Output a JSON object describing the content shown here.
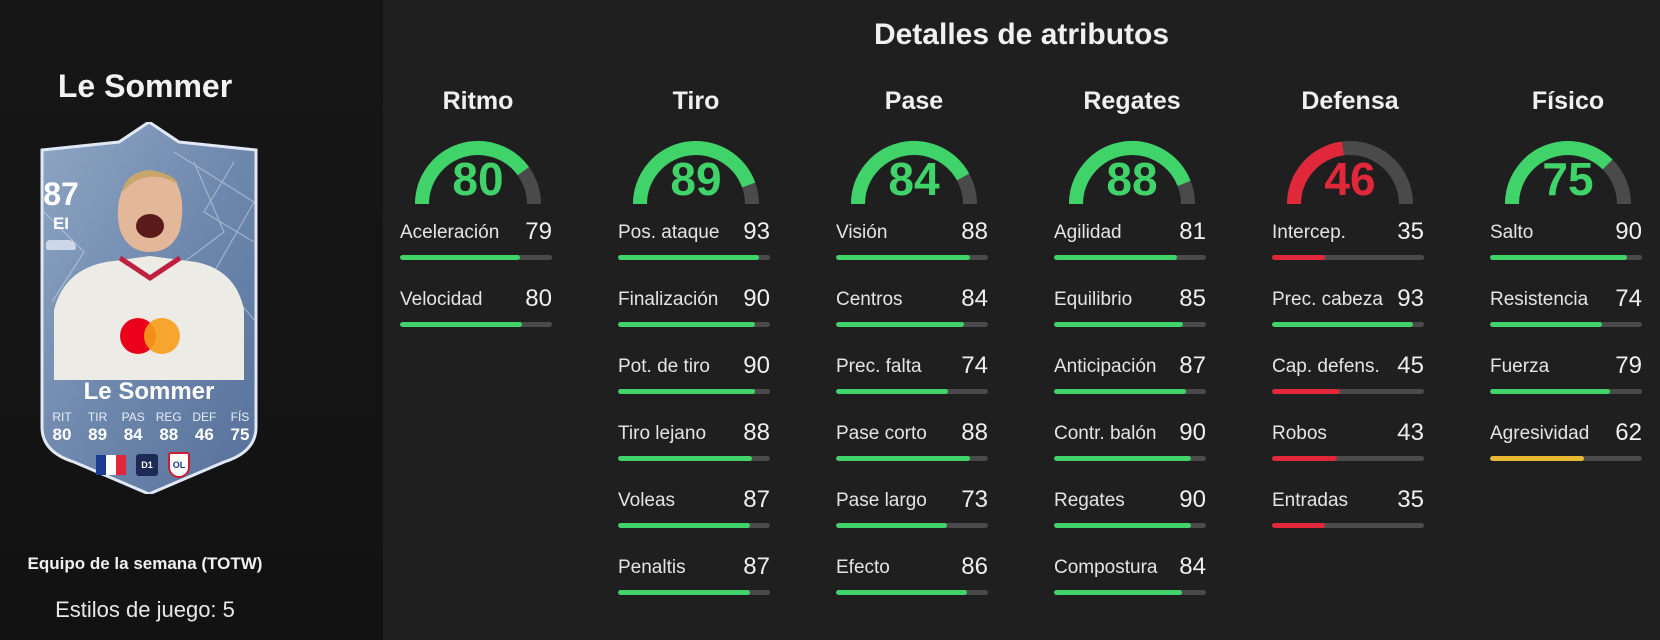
{
  "header": {
    "title": "Detalles de atributos"
  },
  "player": {
    "name": "Le Sommer",
    "card": {
      "rating": "87",
      "position": "EI",
      "name": "Le Sommer",
      "stats": [
        {
          "label": "RIT",
          "value": "80"
        },
        {
          "label": "TIR",
          "value": "89"
        },
        {
          "label": "PAS",
          "value": "84"
        },
        {
          "label": "REG",
          "value": "88"
        },
        {
          "label": "DEF",
          "value": "46"
        },
        {
          "label": "FÍS",
          "value": "75"
        }
      ],
      "league_badge": "D1",
      "club_badge": "OL"
    },
    "team": "Equipo de la semana (TOTW)",
    "playstyles": "Estilos de juego: 5"
  },
  "colors": {
    "green": "#3fd36a",
    "red": "#e0283a",
    "yellow": "#e8b830",
    "track": "#4a4a4a"
  },
  "categories": [
    {
      "name": "Ritmo",
      "value": 80,
      "color": "green",
      "attributes": [
        {
          "name": "Aceleración",
          "value": 79,
          "color": "green"
        },
        {
          "name": "Velocidad",
          "value": 80,
          "color": "green"
        }
      ]
    },
    {
      "name": "Tiro",
      "value": 89,
      "color": "green",
      "attributes": [
        {
          "name": "Pos. ataque",
          "value": 93,
          "color": "green"
        },
        {
          "name": "Finalización",
          "value": 90,
          "color": "green"
        },
        {
          "name": "Pot. de tiro",
          "value": 90,
          "color": "green"
        },
        {
          "name": "Tiro lejano",
          "value": 88,
          "color": "green"
        },
        {
          "name": "Voleas",
          "value": 87,
          "color": "green"
        },
        {
          "name": "Penaltis",
          "value": 87,
          "color": "green"
        }
      ]
    },
    {
      "name": "Pase",
      "value": 84,
      "color": "green",
      "attributes": [
        {
          "name": "Visión",
          "value": 88,
          "color": "green"
        },
        {
          "name": "Centros",
          "value": 84,
          "color": "green"
        },
        {
          "name": "Prec. falta",
          "value": 74,
          "color": "green"
        },
        {
          "name": "Pase corto",
          "value": 88,
          "color": "green"
        },
        {
          "name": "Pase largo",
          "value": 73,
          "color": "green"
        },
        {
          "name": "Efecto",
          "value": 86,
          "color": "green"
        }
      ]
    },
    {
      "name": "Regates",
      "value": 88,
      "color": "green",
      "attributes": [
        {
          "name": "Agilidad",
          "value": 81,
          "color": "green"
        },
        {
          "name": "Equilibrio",
          "value": 85,
          "color": "green"
        },
        {
          "name": "Anticipación",
          "value": 87,
          "color": "green"
        },
        {
          "name": "Contr. balón",
          "value": 90,
          "color": "green"
        },
        {
          "name": "Regates",
          "value": 90,
          "color": "green"
        },
        {
          "name": "Compostura",
          "value": 84,
          "color": "green"
        }
      ]
    },
    {
      "name": "Defensa",
      "value": 46,
      "color": "red",
      "attributes": [
        {
          "name": "Intercep.",
          "value": 35,
          "color": "red"
        },
        {
          "name": "Prec. cabeza",
          "value": 93,
          "color": "green"
        },
        {
          "name": "Cap. defens.",
          "value": 45,
          "color": "red"
        },
        {
          "name": "Robos",
          "value": 43,
          "color": "red"
        },
        {
          "name": "Entradas",
          "value": 35,
          "color": "red"
        }
      ]
    },
    {
      "name": "Físico",
      "value": 75,
      "color": "green",
      "attributes": [
        {
          "name": "Salto",
          "value": 90,
          "color": "green"
        },
        {
          "name": "Resistencia",
          "value": 74,
          "color": "green"
        },
        {
          "name": "Fuerza",
          "value": 79,
          "color": "green"
        },
        {
          "name": "Agresividad",
          "value": 62,
          "color": "yellow"
        }
      ]
    }
  ]
}
